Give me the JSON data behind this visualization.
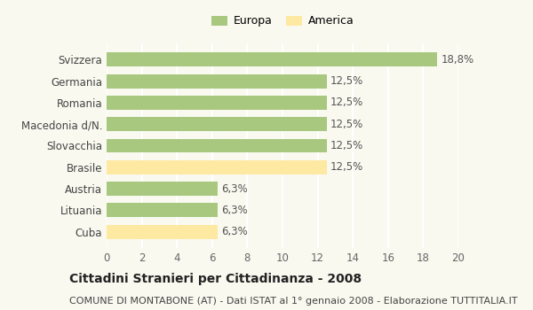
{
  "categories": [
    "Svizzera",
    "Germania",
    "Romania",
    "Macedonia d/N.",
    "Slovacchia",
    "Brasile",
    "Austria",
    "Lituania",
    "Cuba"
  ],
  "values": [
    18.8,
    12.5,
    12.5,
    12.5,
    12.5,
    12.5,
    6.3,
    6.3,
    6.3
  ],
  "colors": [
    "#a8c880",
    "#a8c880",
    "#a8c880",
    "#a8c880",
    "#a8c880",
    "#fde9a2",
    "#a8c880",
    "#a8c880",
    "#fde9a2"
  ],
  "labels": [
    "18,8%",
    "12,5%",
    "12,5%",
    "12,5%",
    "12,5%",
    "12,5%",
    "6,3%",
    "6,3%",
    "6,3%"
  ],
  "legend_europa_color": "#a8c880",
  "legend_america_color": "#fde9a2",
  "legend_europa_label": "Europa",
  "legend_america_label": "America",
  "xlim": [
    0,
    20
  ],
  "xticks": [
    0,
    2,
    4,
    6,
    8,
    10,
    12,
    14,
    16,
    18,
    20
  ],
  "title": "Cittadini Stranieri per Cittadinanza - 2008",
  "subtitle": "COMUNE DI MONTABONE (AT) - Dati ISTAT al 1° gennaio 2008 - Elaborazione TUTTITALIA.IT",
  "background_color": "#f9f9f0",
  "grid_color": "#ffffff",
  "label_fontsize": 8.5,
  "title_fontsize": 10,
  "subtitle_fontsize": 8
}
